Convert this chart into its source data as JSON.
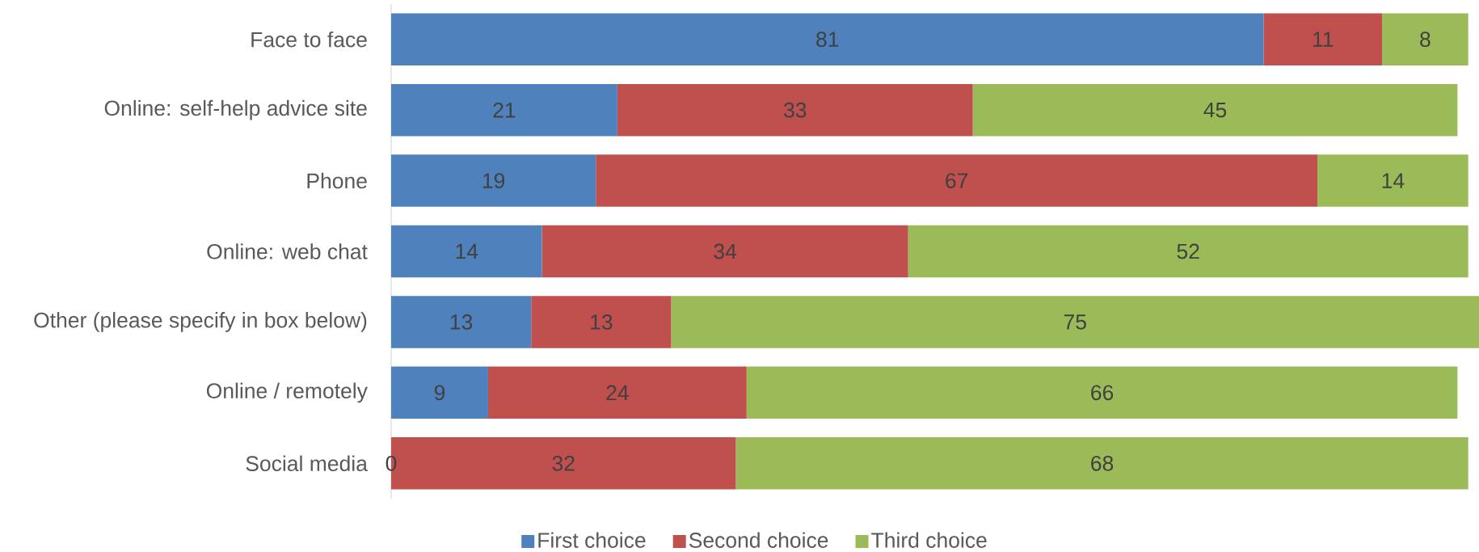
{
  "chart_data": {
    "type": "bar",
    "orientation": "horizontal",
    "stacked": true,
    "categories": [
      "Face to face",
      "Online: self-help advice site",
      "Phone",
      "Online: web chat",
      "Other (please specify in box below)",
      "Online / remotely",
      "Social media"
    ],
    "series": [
      {
        "name": "First choice",
        "color": "#4f81bd",
        "values": [
          81,
          21,
          19,
          14,
          13,
          9,
          0
        ],
        "value_labels": [
          "81",
          "21",
          "19",
          "14",
          "13",
          "9",
          null
        ]
      },
      {
        "name": "Second choice",
        "color": "#c0504d",
        "values": [
          11,
          33,
          67,
          34,
          13,
          24,
          32
        ],
        "value_labels": [
          "11",
          "33",
          "67",
          "34",
          "13",
          "24",
          "32"
        ]
      },
      {
        "name": "Third choice",
        "color": "#9bbb59",
        "values": [
          8,
          45,
          14,
          52,
          75,
          66,
          68
        ],
        "value_labels": [
          "8",
          "45",
          "14",
          "52",
          "75",
          "66",
          "68"
        ]
      }
    ],
    "annotations": [
      {
        "text": "0",
        "x": 0,
        "y": "Social media"
      }
    ],
    "legend": "bottom",
    "tick_labels": "y"
  }
}
